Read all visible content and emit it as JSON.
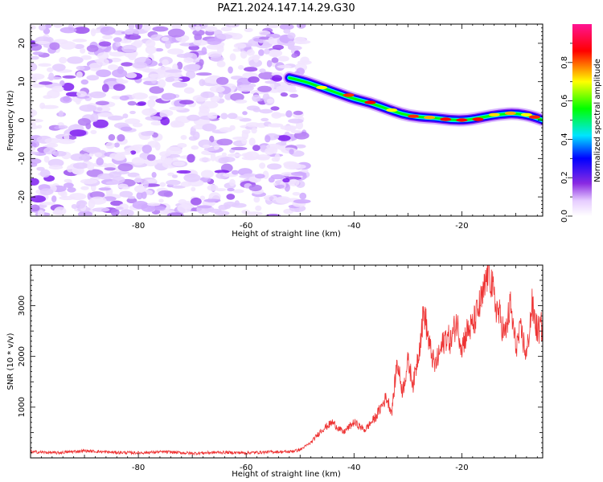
{
  "title": "PAZ1.2024.147.14.29.G30",
  "chart_data": [
    {
      "type": "heatmap",
      "xlabel": "Height of straight line (km)",
      "ylabel": "Frequency (Hz)",
      "xlim": [
        -100,
        -5
      ],
      "ylim": [
        -25,
        25
      ],
      "x_ticks": [
        -80,
        -60,
        -40,
        -20
      ],
      "y_ticks": [
        -20,
        -10,
        0,
        10,
        20
      ],
      "colorbar": {
        "label": "Normalized spectral amplitude",
        "ticks": [
          0.0,
          0.2,
          0.4,
          0.6,
          0.8
        ],
        "tick_labels": [
          "0.0",
          "0.2",
          "0.4",
          "0.6",
          "0.8"
        ],
        "range": [
          0,
          1
        ],
        "colors": [
          "#ffffff",
          "#8a2be2",
          "#0000ff",
          "#00e5ff",
          "#00ff00",
          "#ffff00",
          "#ff0000",
          "#ff1493"
        ]
      },
      "noise_region_x": [
        -100,
        -49
      ],
      "ridge": [
        {
          "x": -52,
          "y": 11
        },
        {
          "x": -49,
          "y": 10
        },
        {
          "x": -46,
          "y": 8.5
        },
        {
          "x": -43,
          "y": 7
        },
        {
          "x": -40,
          "y": 5.5
        },
        {
          "x": -37,
          "y": 4.5
        },
        {
          "x": -34,
          "y": 3
        },
        {
          "x": -31,
          "y": 1.5
        },
        {
          "x": -28,
          "y": 0.8
        },
        {
          "x": -25,
          "y": 0.6
        },
        {
          "x": -22,
          "y": 0
        },
        {
          "x": -19,
          "y": 0
        },
        {
          "x": -16,
          "y": 0.8
        },
        {
          "x": -13,
          "y": 1.5
        },
        {
          "x": -10,
          "y": 1.8
        },
        {
          "x": -7,
          "y": 1.0
        },
        {
          "x": -5,
          "y": 0
        }
      ]
    },
    {
      "type": "line",
      "xlabel": "Height of straight line (km)",
      "ylabel": "SNR (10 * v/v)",
      "xlim": [
        -100,
        -5
      ],
      "ylim": [
        0,
        3800
      ],
      "x_ticks": [
        -80,
        -60,
        -40,
        -20
      ],
      "y_ticks": [
        1000,
        2000,
        3000
      ],
      "color": "#ee3333",
      "series": [
        {
          "x": [
            -100,
            -95,
            -90,
            -85,
            -80,
            -75,
            -70,
            -65,
            -60,
            -55,
            -52,
            -50,
            -48,
            -46,
            -44,
            -42,
            -40,
            -38,
            -36,
            -34,
            -33,
            -32,
            -31,
            -30,
            -29,
            -28,
            -27,
            -26,
            -25,
            -24,
            -23,
            -22,
            -21,
            -20,
            -19,
            -18,
            -17,
            -16,
            -15,
            -14,
            -13,
            -12,
            -11,
            -10,
            -9,
            -8,
            -7,
            -6,
            -5
          ],
          "y": [
            120,
            100,
            140,
            110,
            100,
            120,
            90,
            110,
            100,
            120,
            120,
            160,
            300,
            550,
            700,
            500,
            700,
            550,
            800,
            1200,
            900,
            1900,
            1300,
            1900,
            1450,
            2100,
            2900,
            2200,
            1800,
            2100,
            2400,
            2300,
            2700,
            2200,
            2500,
            2600,
            2900,
            3200,
            3800,
            3100,
            2800,
            2400,
            3000,
            2200,
            2500,
            2000,
            3000,
            2500,
            2600
          ]
        }
      ]
    }
  ]
}
